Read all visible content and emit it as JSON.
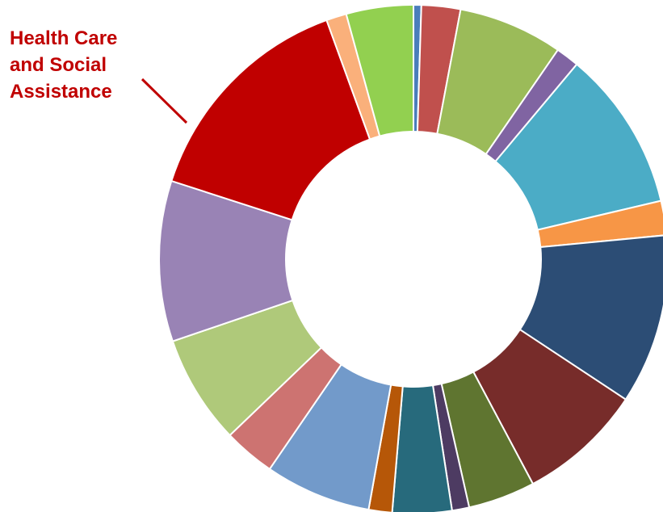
{
  "chart_data": {
    "type": "pie",
    "variant": "donut",
    "start_angle_deg": 0,
    "direction": "clockwise",
    "slices": [
      {
        "value": 0.5,
        "color": "#4A7EBB"
      },
      {
        "value": 2.5,
        "color": "#C0504D"
      },
      {
        "value": 6.7,
        "color": "#9BBB59"
      },
      {
        "value": 1.5,
        "color": "#8064A2"
      },
      {
        "value": 10.3,
        "color": "#4BACC6"
      },
      {
        "value": 2.2,
        "color": "#F79646"
      },
      {
        "value": 10.9,
        "color": "#2C4D75"
      },
      {
        "value": 8.0,
        "color": "#772C2A"
      },
      {
        "value": 4.3,
        "color": "#5F7530"
      },
      {
        "value": 1.1,
        "color": "#4D3B62"
      },
      {
        "value": 3.8,
        "color": "#276A7C"
      },
      {
        "value": 1.5,
        "color": "#B65708"
      },
      {
        "value": 6.8,
        "color": "#729ACA"
      },
      {
        "value": 3.3,
        "color": "#CD7371"
      },
      {
        "value": 7.0,
        "color": "#AFC97A"
      },
      {
        "value": 10.3,
        "color": "#9983B5"
      },
      {
        "value": 14.6,
        "color": "#C00000"
      },
      {
        "value": 1.3,
        "color": "#FAB07B"
      },
      {
        "value": 4.3,
        "color": "#92D050"
      }
    ],
    "callout": {
      "slice_index": 16,
      "lines": [
        "Health Care",
        "and Social",
        "Assistance"
      ],
      "color": "#C00000"
    },
    "legend": "none"
  }
}
